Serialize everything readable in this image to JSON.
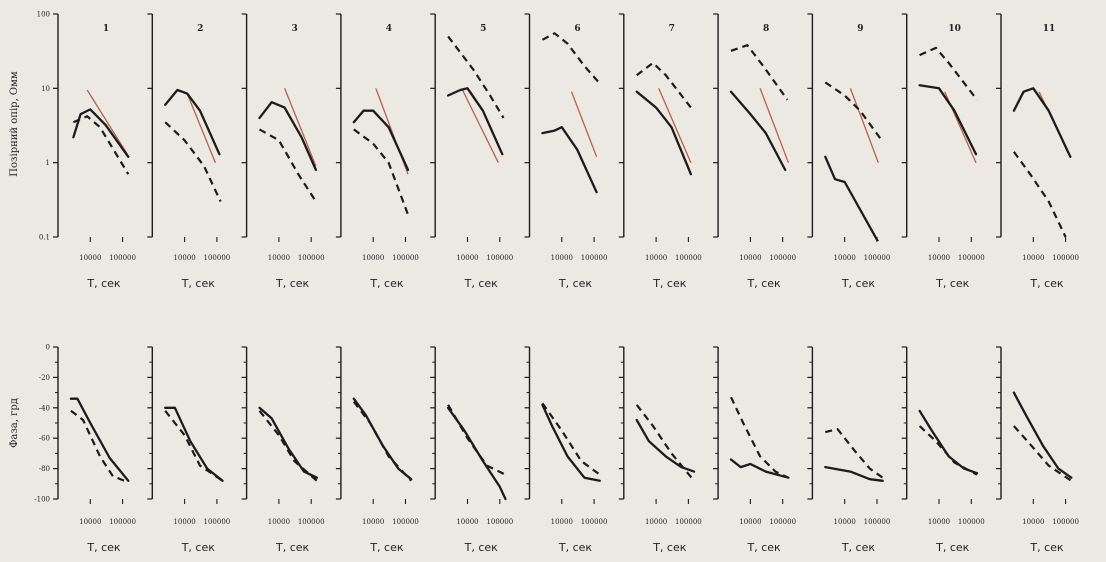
{
  "colors": {
    "background": "#ebe9e2",
    "ink": "#1c1c1c",
    "reference_line": "#b5614a"
  },
  "chart_data": [
    {
      "type": "line",
      "row": "apparent_resistivity",
      "ylabel": "Позірний опір, Омм",
      "yscale": "log",
      "ylim": [
        0.1,
        100
      ],
      "yticks": [
        "0.1",
        "1",
        "10",
        "100"
      ],
      "xscale": "log",
      "xlim": [
        1000,
        300000
      ],
      "xticks": [
        "10000",
        "100000"
      ],
      "xlabel": "T, сек",
      "panels": [
        {
          "label": "1",
          "solid": [
            [
              3000,
              2.2
            ],
            [
              5000,
              4.5
            ],
            [
              10000,
              5.2
            ],
            [
              30000,
              3.2
            ],
            [
              150000,
              1.2
            ]
          ],
          "dashed": [
            [
              3000,
              3.5
            ],
            [
              8000,
              4.2
            ],
            [
              20000,
              3
            ],
            [
              150000,
              0.7
            ]
          ],
          "reference": [
            [
              8000,
              9.5
            ],
            [
              140000,
              1.3
            ]
          ]
        },
        {
          "label": "2",
          "solid": [
            [
              2500,
              6
            ],
            [
              6000,
              9.5
            ],
            [
              12000,
              8.5
            ],
            [
              30000,
              5
            ],
            [
              120000,
              1.3
            ]
          ],
          "dashed": [
            [
              2500,
              3.5
            ],
            [
              10000,
              2
            ],
            [
              40000,
              0.9
            ],
            [
              130000,
              0.3
            ]
          ],
          "reference": [
            [
              12000,
              8.5
            ],
            [
              90000,
              1
            ]
          ]
        },
        {
          "label": "3",
          "solid": [
            [
              2500,
              4
            ],
            [
              6000,
              6.5
            ],
            [
              15000,
              5.5
            ],
            [
              50000,
              2.2
            ],
            [
              140000,
              0.8
            ]
          ],
          "dashed": [
            [
              2500,
              2.8
            ],
            [
              10000,
              2
            ],
            [
              40000,
              0.7
            ],
            [
              140000,
              0.3
            ]
          ],
          "reference": [
            [
              15000,
              10
            ],
            [
              140000,
              0.9
            ]
          ]
        },
        {
          "label": "4",
          "solid": [
            [
              2500,
              3.5
            ],
            [
              5000,
              5
            ],
            [
              10000,
              5
            ],
            [
              30000,
              3
            ],
            [
              120000,
              0.8
            ]
          ],
          "dashed": [
            [
              2500,
              2.8
            ],
            [
              10000,
              1.8
            ],
            [
              30000,
              1
            ],
            [
              120000,
              0.2
            ]
          ],
          "reference": [
            [
              12000,
              10
            ],
            [
              120000,
              0.7
            ]
          ]
        },
        {
          "label": "5",
          "solid": [
            [
              2500,
              8
            ],
            [
              6000,
              9.5
            ],
            [
              10000,
              10
            ],
            [
              30000,
              5
            ],
            [
              120000,
              1.3
            ]
          ],
          "dashed": [
            [
              2500,
              50
            ],
            [
              15000,
              18
            ],
            [
              50000,
              8
            ],
            [
              130000,
              4
            ]
          ],
          "reference": [
            [
              7000,
              9.5
            ],
            [
              90000,
              1
            ]
          ]
        },
        {
          "label": "6",
          "solid": [
            [
              2500,
              2.5
            ],
            [
              6000,
              2.7
            ],
            [
              10000,
              3
            ],
            [
              30000,
              1.5
            ],
            [
              120000,
              0.4
            ]
          ],
          "dashed": [
            [
              2500,
              45
            ],
            [
              6000,
              55
            ],
            [
              15000,
              40
            ],
            [
              50000,
              20
            ],
            [
              140000,
              12
            ]
          ],
          "reference": [
            [
              20000,
              9
            ],
            [
              120000,
              1.2
            ]
          ]
        },
        {
          "label": "7",
          "solid": [
            [
              2500,
              9
            ],
            [
              10000,
              5.5
            ],
            [
              30000,
              3
            ],
            [
              120000,
              0.7
            ]
          ],
          "dashed": [
            [
              2500,
              15
            ],
            [
              8000,
              22
            ],
            [
              20000,
              15
            ],
            [
              120000,
              5.5
            ]
          ],
          "reference": [
            [
              12000,
              10
            ],
            [
              120000,
              1
            ]
          ]
        },
        {
          "label": "8",
          "solid": [
            [
              2500,
              9
            ],
            [
              10000,
              4.5
            ],
            [
              30000,
              2.5
            ],
            [
              120000,
              0.8
            ]
          ],
          "dashed": [
            [
              2500,
              32
            ],
            [
              8000,
              38
            ],
            [
              25000,
              20
            ],
            [
              140000,
              7
            ]
          ],
          "reference": [
            [
              20000,
              10
            ],
            [
              150000,
              1
            ]
          ]
        },
        {
          "label": "9",
          "solid": [
            [
              2500,
              1.2
            ],
            [
              5000,
              0.6
            ],
            [
              10000,
              0.55
            ],
            [
              120000,
              0.08
            ]
          ],
          "dashed": [
            [
              2500,
              12
            ],
            [
              10000,
              8
            ],
            [
              30000,
              5
            ],
            [
              140000,
              2
            ]
          ],
          "reference": [
            [
              15000,
              10
            ],
            [
              110000,
              1
            ]
          ]
        },
        {
          "label": "10",
          "solid": [
            [
              2500,
              11
            ],
            [
              10000,
              10
            ],
            [
              30000,
              5
            ],
            [
              140000,
              1.3
            ]
          ],
          "dashed": [
            [
              2500,
              28
            ],
            [
              8000,
              35
            ],
            [
              20000,
              22
            ],
            [
              150000,
              7
            ]
          ],
          "reference": [
            [
              15000,
              9
            ],
            [
              140000,
              1
            ]
          ]
        },
        {
          "label": "11",
          "solid": [
            [
              2500,
              5
            ],
            [
              5000,
              9
            ],
            [
              10000,
              10
            ],
            [
              30000,
              5
            ],
            [
              140000,
              1.2
            ]
          ],
          "dashed": [
            [
              2500,
              1.4
            ],
            [
              8000,
              0.7
            ],
            [
              30000,
              0.3
            ],
            [
              100000,
              0.1
            ]
          ],
          "reference": [
            [
              15000,
              9
            ],
            [
              130000,
              1.3
            ]
          ]
        }
      ]
    },
    {
      "type": "line",
      "row": "phase",
      "ylabel": "Фаза, грд",
      "ylim": [
        -100,
        0
      ],
      "yticks": [
        "0",
        "-20",
        "-40",
        "-60",
        "-80",
        "-100"
      ],
      "xscale": "log",
      "xlim": [
        1000,
        300000
      ],
      "xticks": [
        "10000",
        "100000"
      ],
      "xlabel": "T, сек",
      "panels": [
        {
          "label": "1",
          "solid": [
            [
              2500,
              -34
            ],
            [
              4000,
              -34
            ],
            [
              10000,
              -50
            ],
            [
              40000,
              -73
            ],
            [
              150000,
              -88
            ]
          ],
          "dashed": [
            [
              2500,
              -42
            ],
            [
              6000,
              -48
            ],
            [
              20000,
              -72
            ],
            [
              50000,
              -85
            ],
            [
              150000,
              -89
            ]
          ]
        },
        {
          "label": "2",
          "solid": [
            [
              2500,
              -40
            ],
            [
              5000,
              -40
            ],
            [
              15000,
              -62
            ],
            [
              50000,
              -80
            ],
            [
              150000,
              -88
            ]
          ],
          "dashed": [
            [
              2500,
              -42
            ],
            [
              10000,
              -58
            ],
            [
              30000,
              -78
            ],
            [
              150000,
              -88
            ]
          ]
        },
        {
          "label": "3",
          "solid": [
            [
              2500,
              -40
            ],
            [
              6000,
              -47
            ],
            [
              20000,
              -67
            ],
            [
              60000,
              -82
            ],
            [
              150000,
              -86
            ]
          ],
          "dashed": [
            [
              2500,
              -42
            ],
            [
              10000,
              -58
            ],
            [
              30000,
              -75
            ],
            [
              150000,
              -88
            ]
          ]
        },
        {
          "label": "4",
          "solid": [
            [
              2500,
              -34
            ],
            [
              6000,
              -45
            ],
            [
              20000,
              -65
            ],
            [
              60000,
              -80
            ],
            [
              150000,
              -87
            ]
          ],
          "dashed": [
            [
              2500,
              -36
            ],
            [
              8000,
              -50
            ],
            [
              30000,
              -72
            ],
            [
              150000,
              -88
            ]
          ]
        },
        {
          "label": "5",
          "solid": [
            [
              2500,
              -40
            ],
            [
              8000,
              -55
            ],
            [
              30000,
              -75
            ],
            [
              100000,
              -92
            ],
            [
              150000,
              -100
            ]
          ],
          "dashed": [
            [
              2500,
              -38
            ],
            [
              10000,
              -60
            ],
            [
              40000,
              -78
            ],
            [
              150000,
              -84
            ]
          ]
        },
        {
          "label": "6",
          "solid": [
            [
              2500,
              -38
            ],
            [
              5000,
              -52
            ],
            [
              15000,
              -72
            ],
            [
              50000,
              -86
            ],
            [
              150000,
              -88
            ]
          ],
          "dashed": [
            [
              2500,
              -37
            ],
            [
              10000,
              -55
            ],
            [
              40000,
              -75
            ],
            [
              150000,
              -84
            ]
          ]
        },
        {
          "label": "7",
          "solid": [
            [
              2500,
              -48
            ],
            [
              6000,
              -62
            ],
            [
              20000,
              -72
            ],
            [
              60000,
              -79
            ],
            [
              150000,
              -82
            ]
          ],
          "dashed": [
            [
              2500,
              -38
            ],
            [
              8000,
              -52
            ],
            [
              30000,
              -70
            ],
            [
              150000,
              -88
            ]
          ]
        },
        {
          "label": "8",
          "solid": [
            [
              2500,
              -74
            ],
            [
              5000,
              -79
            ],
            [
              10000,
              -77
            ],
            [
              30000,
              -82
            ],
            [
              150000,
              -86
            ]
          ],
          "dashed": [
            [
              2500,
              -33
            ],
            [
              6000,
              -50
            ],
            [
              20000,
              -72
            ],
            [
              60000,
              -82
            ],
            [
              150000,
              -86
            ]
          ]
        },
        {
          "label": "9",
          "solid": [
            [
              2500,
              -79
            ],
            [
              15000,
              -82
            ],
            [
              60000,
              -87
            ],
            [
              150000,
              -88
            ]
          ],
          "dashed": [
            [
              2500,
              -56
            ],
            [
              6000,
              -54
            ],
            [
              20000,
              -68
            ],
            [
              60000,
              -80
            ],
            [
              150000,
              -86
            ]
          ]
        },
        {
          "label": "10",
          "solid": [
            [
              2500,
              -42
            ],
            [
              6000,
              -55
            ],
            [
              20000,
              -72
            ],
            [
              60000,
              -80
            ],
            [
              150000,
              -83
            ]
          ],
          "dashed": [
            [
              2500,
              -52
            ],
            [
              8000,
              -62
            ],
            [
              30000,
              -76
            ],
            [
              150000,
              -84
            ]
          ]
        },
        {
          "label": "11",
          "solid": [
            [
              2500,
              -30
            ],
            [
              6000,
              -45
            ],
            [
              20000,
              -65
            ],
            [
              60000,
              -80
            ],
            [
              150000,
              -86
            ]
          ],
          "dashed": [
            [
              2500,
              -52
            ],
            [
              8000,
              -64
            ],
            [
              30000,
              -78
            ],
            [
              150000,
              -88
            ]
          ]
        }
      ]
    }
  ]
}
